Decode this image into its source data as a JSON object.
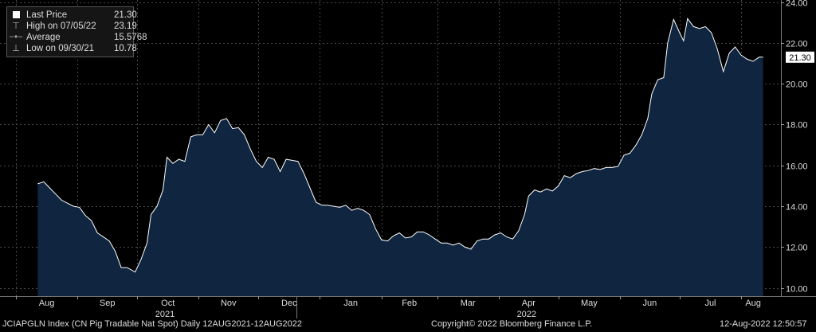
{
  "legend": {
    "last_label": "Last Price",
    "last_value": "21.30",
    "high_label": "High on 07/05/22",
    "high_value": "23.19",
    "avg_label": "Average",
    "avg_value": "15.5768",
    "low_label": "Low on 09/30/21",
    "low_value": "10.78"
  },
  "footer": {
    "left": "JCIAPGLN Index (CN Pig Tradable Nat Spot)  Daily 12AUG2021-12AUG2022",
    "center": "Copyright© 2022 Bloomberg Finance L.P.",
    "right": "12-Aug-2022 12:50:57"
  },
  "colors": {
    "background": "#000000",
    "area": "#0f2540",
    "line": "#ffffff",
    "grid": "#555555"
  },
  "chart_data": {
    "type": "area",
    "title": "",
    "xlabel": "",
    "ylabel": "",
    "ylim": [
      9.6,
      24.1
    ],
    "yticks": [
      "10.00",
      "12.00",
      "14.00",
      "16.00",
      "18.00",
      "20.00",
      "22.00",
      "24.00"
    ],
    "ytick_values": [
      10,
      12,
      14,
      16,
      18,
      20,
      22,
      24
    ],
    "xticks": [
      "Aug",
      "Sep",
      "Oct",
      "Nov",
      "Dec",
      "Jan",
      "Feb",
      "Mar",
      "Apr",
      "May",
      "Jun",
      "Jul",
      "Aug"
    ],
    "xtick_dates": [
      "2021-08-01",
      "2021-09-01",
      "2021-10-01",
      "2021-11-01",
      "2021-12-01",
      "2022-01-01",
      "2022-02-01",
      "2022-03-01",
      "2022-04-01",
      "2022-05-01",
      "2022-06-01",
      "2022-07-01",
      "2022-08-01"
    ],
    "years": [
      {
        "label": "2021",
        "date": "2021-10-15"
      },
      {
        "label": "2022",
        "date": "2022-04-15"
      }
    ],
    "last_price_label": "21.30",
    "grid": true,
    "series": [
      {
        "name": "Last Price",
        "points": [
          [
            "2021-08-12",
            15.1
          ],
          [
            "2021-08-15",
            15.2
          ],
          [
            "2021-08-18",
            14.9
          ],
          [
            "2021-08-21",
            14.6
          ],
          [
            "2021-08-24",
            14.3
          ],
          [
            "2021-08-27",
            14.15
          ],
          [
            "2021-08-30",
            14.0
          ],
          [
            "2021-09-02",
            13.95
          ],
          [
            "2021-09-05",
            13.55
          ],
          [
            "2021-09-08",
            13.3
          ],
          [
            "2021-09-11",
            12.7
          ],
          [
            "2021-09-14",
            12.5
          ],
          [
            "2021-09-17",
            12.3
          ],
          [
            "2021-09-20",
            11.8
          ],
          [
            "2021-09-23",
            11.0
          ],
          [
            "2021-09-26",
            11.0
          ],
          [
            "2021-09-30",
            10.78
          ],
          [
            "2021-10-03",
            11.4
          ],
          [
            "2021-10-06",
            12.2
          ],
          [
            "2021-10-08",
            13.6
          ],
          [
            "2021-10-11",
            14.0
          ],
          [
            "2021-10-14",
            14.8
          ],
          [
            "2021-10-16",
            16.4
          ],
          [
            "2021-10-19",
            16.1
          ],
          [
            "2021-10-22",
            16.3
          ],
          [
            "2021-10-25",
            16.2
          ],
          [
            "2021-10-28",
            17.4
          ],
          [
            "2021-10-31",
            17.5
          ],
          [
            "2021-11-03",
            17.5
          ],
          [
            "2021-11-06",
            18.0
          ],
          [
            "2021-11-09",
            17.6
          ],
          [
            "2021-11-12",
            18.2
          ],
          [
            "2021-11-15",
            18.3
          ],
          [
            "2021-11-18",
            17.8
          ],
          [
            "2021-11-21",
            17.85
          ],
          [
            "2021-11-24",
            17.5
          ],
          [
            "2021-11-27",
            16.8
          ],
          [
            "2021-11-30",
            16.2
          ],
          [
            "2021-12-03",
            15.9
          ],
          [
            "2021-12-06",
            16.4
          ],
          [
            "2021-12-09",
            16.3
          ],
          [
            "2021-12-12",
            15.7
          ],
          [
            "2021-12-15",
            16.3
          ],
          [
            "2021-12-18",
            16.25
          ],
          [
            "2021-12-21",
            16.2
          ],
          [
            "2021-12-24",
            15.6
          ],
          [
            "2021-12-27",
            14.9
          ],
          [
            "2021-12-30",
            14.2
          ],
          [
            "2022-01-02",
            14.05
          ],
          [
            "2022-01-05",
            14.05
          ],
          [
            "2022-01-08",
            14.0
          ],
          [
            "2022-01-11",
            13.95
          ],
          [
            "2022-01-14",
            14.05
          ],
          [
            "2022-01-17",
            13.8
          ],
          [
            "2022-01-20",
            13.9
          ],
          [
            "2022-01-23",
            13.8
          ],
          [
            "2022-01-26",
            13.6
          ],
          [
            "2022-01-29",
            12.9
          ],
          [
            "2022-02-01",
            12.35
          ],
          [
            "2022-02-04",
            12.3
          ],
          [
            "2022-02-07",
            12.55
          ],
          [
            "2022-02-10",
            12.7
          ],
          [
            "2022-02-13",
            12.45
          ],
          [
            "2022-02-16",
            12.5
          ],
          [
            "2022-02-19",
            12.75
          ],
          [
            "2022-02-22",
            12.75
          ],
          [
            "2022-02-25",
            12.6
          ],
          [
            "2022-02-28",
            12.4
          ],
          [
            "2022-03-03",
            12.2
          ],
          [
            "2022-03-06",
            12.2
          ],
          [
            "2022-03-09",
            12.1
          ],
          [
            "2022-03-12",
            12.2
          ],
          [
            "2022-03-15",
            12.0
          ],
          [
            "2022-03-18",
            11.9
          ],
          [
            "2022-03-21",
            12.3
          ],
          [
            "2022-03-24",
            12.4
          ],
          [
            "2022-03-27",
            12.4
          ],
          [
            "2022-03-30",
            12.6
          ],
          [
            "2022-04-02",
            12.7
          ],
          [
            "2022-04-05",
            12.5
          ],
          [
            "2022-04-08",
            12.4
          ],
          [
            "2022-04-11",
            12.8
          ],
          [
            "2022-04-14",
            13.6
          ],
          [
            "2022-04-16",
            14.5
          ],
          [
            "2022-04-19",
            14.8
          ],
          [
            "2022-04-22",
            14.7
          ],
          [
            "2022-04-25",
            14.85
          ],
          [
            "2022-04-28",
            14.75
          ],
          [
            "2022-05-01",
            15.0
          ],
          [
            "2022-05-04",
            15.5
          ],
          [
            "2022-05-07",
            15.4
          ],
          [
            "2022-05-10",
            15.6
          ],
          [
            "2022-05-13",
            15.7
          ],
          [
            "2022-05-16",
            15.75
          ],
          [
            "2022-05-19",
            15.85
          ],
          [
            "2022-05-22",
            15.8
          ],
          [
            "2022-05-25",
            15.9
          ],
          [
            "2022-05-28",
            15.9
          ],
          [
            "2022-05-31",
            15.95
          ],
          [
            "2022-06-03",
            16.5
          ],
          [
            "2022-06-06",
            16.6
          ],
          [
            "2022-06-09",
            17.0
          ],
          [
            "2022-06-12",
            17.5
          ],
          [
            "2022-06-15",
            18.3
          ],
          [
            "2022-06-17",
            19.5
          ],
          [
            "2022-06-20",
            20.2
          ],
          [
            "2022-06-23",
            20.3
          ],
          [
            "2022-06-25",
            22.0
          ],
          [
            "2022-06-28",
            23.15
          ],
          [
            "2022-07-01",
            22.5
          ],
          [
            "2022-07-03",
            22.1
          ],
          [
            "2022-07-05",
            23.19
          ],
          [
            "2022-07-08",
            22.8
          ],
          [
            "2022-07-11",
            22.7
          ],
          [
            "2022-07-14",
            22.8
          ],
          [
            "2022-07-17",
            22.5
          ],
          [
            "2022-07-20",
            21.7
          ],
          [
            "2022-07-23",
            20.6
          ],
          [
            "2022-07-26",
            21.5
          ],
          [
            "2022-07-29",
            21.8
          ],
          [
            "2022-08-01",
            21.4
          ],
          [
            "2022-08-04",
            21.2
          ],
          [
            "2022-08-07",
            21.1
          ],
          [
            "2022-08-10",
            21.3
          ],
          [
            "2022-08-12",
            21.3
          ]
        ]
      }
    ]
  }
}
